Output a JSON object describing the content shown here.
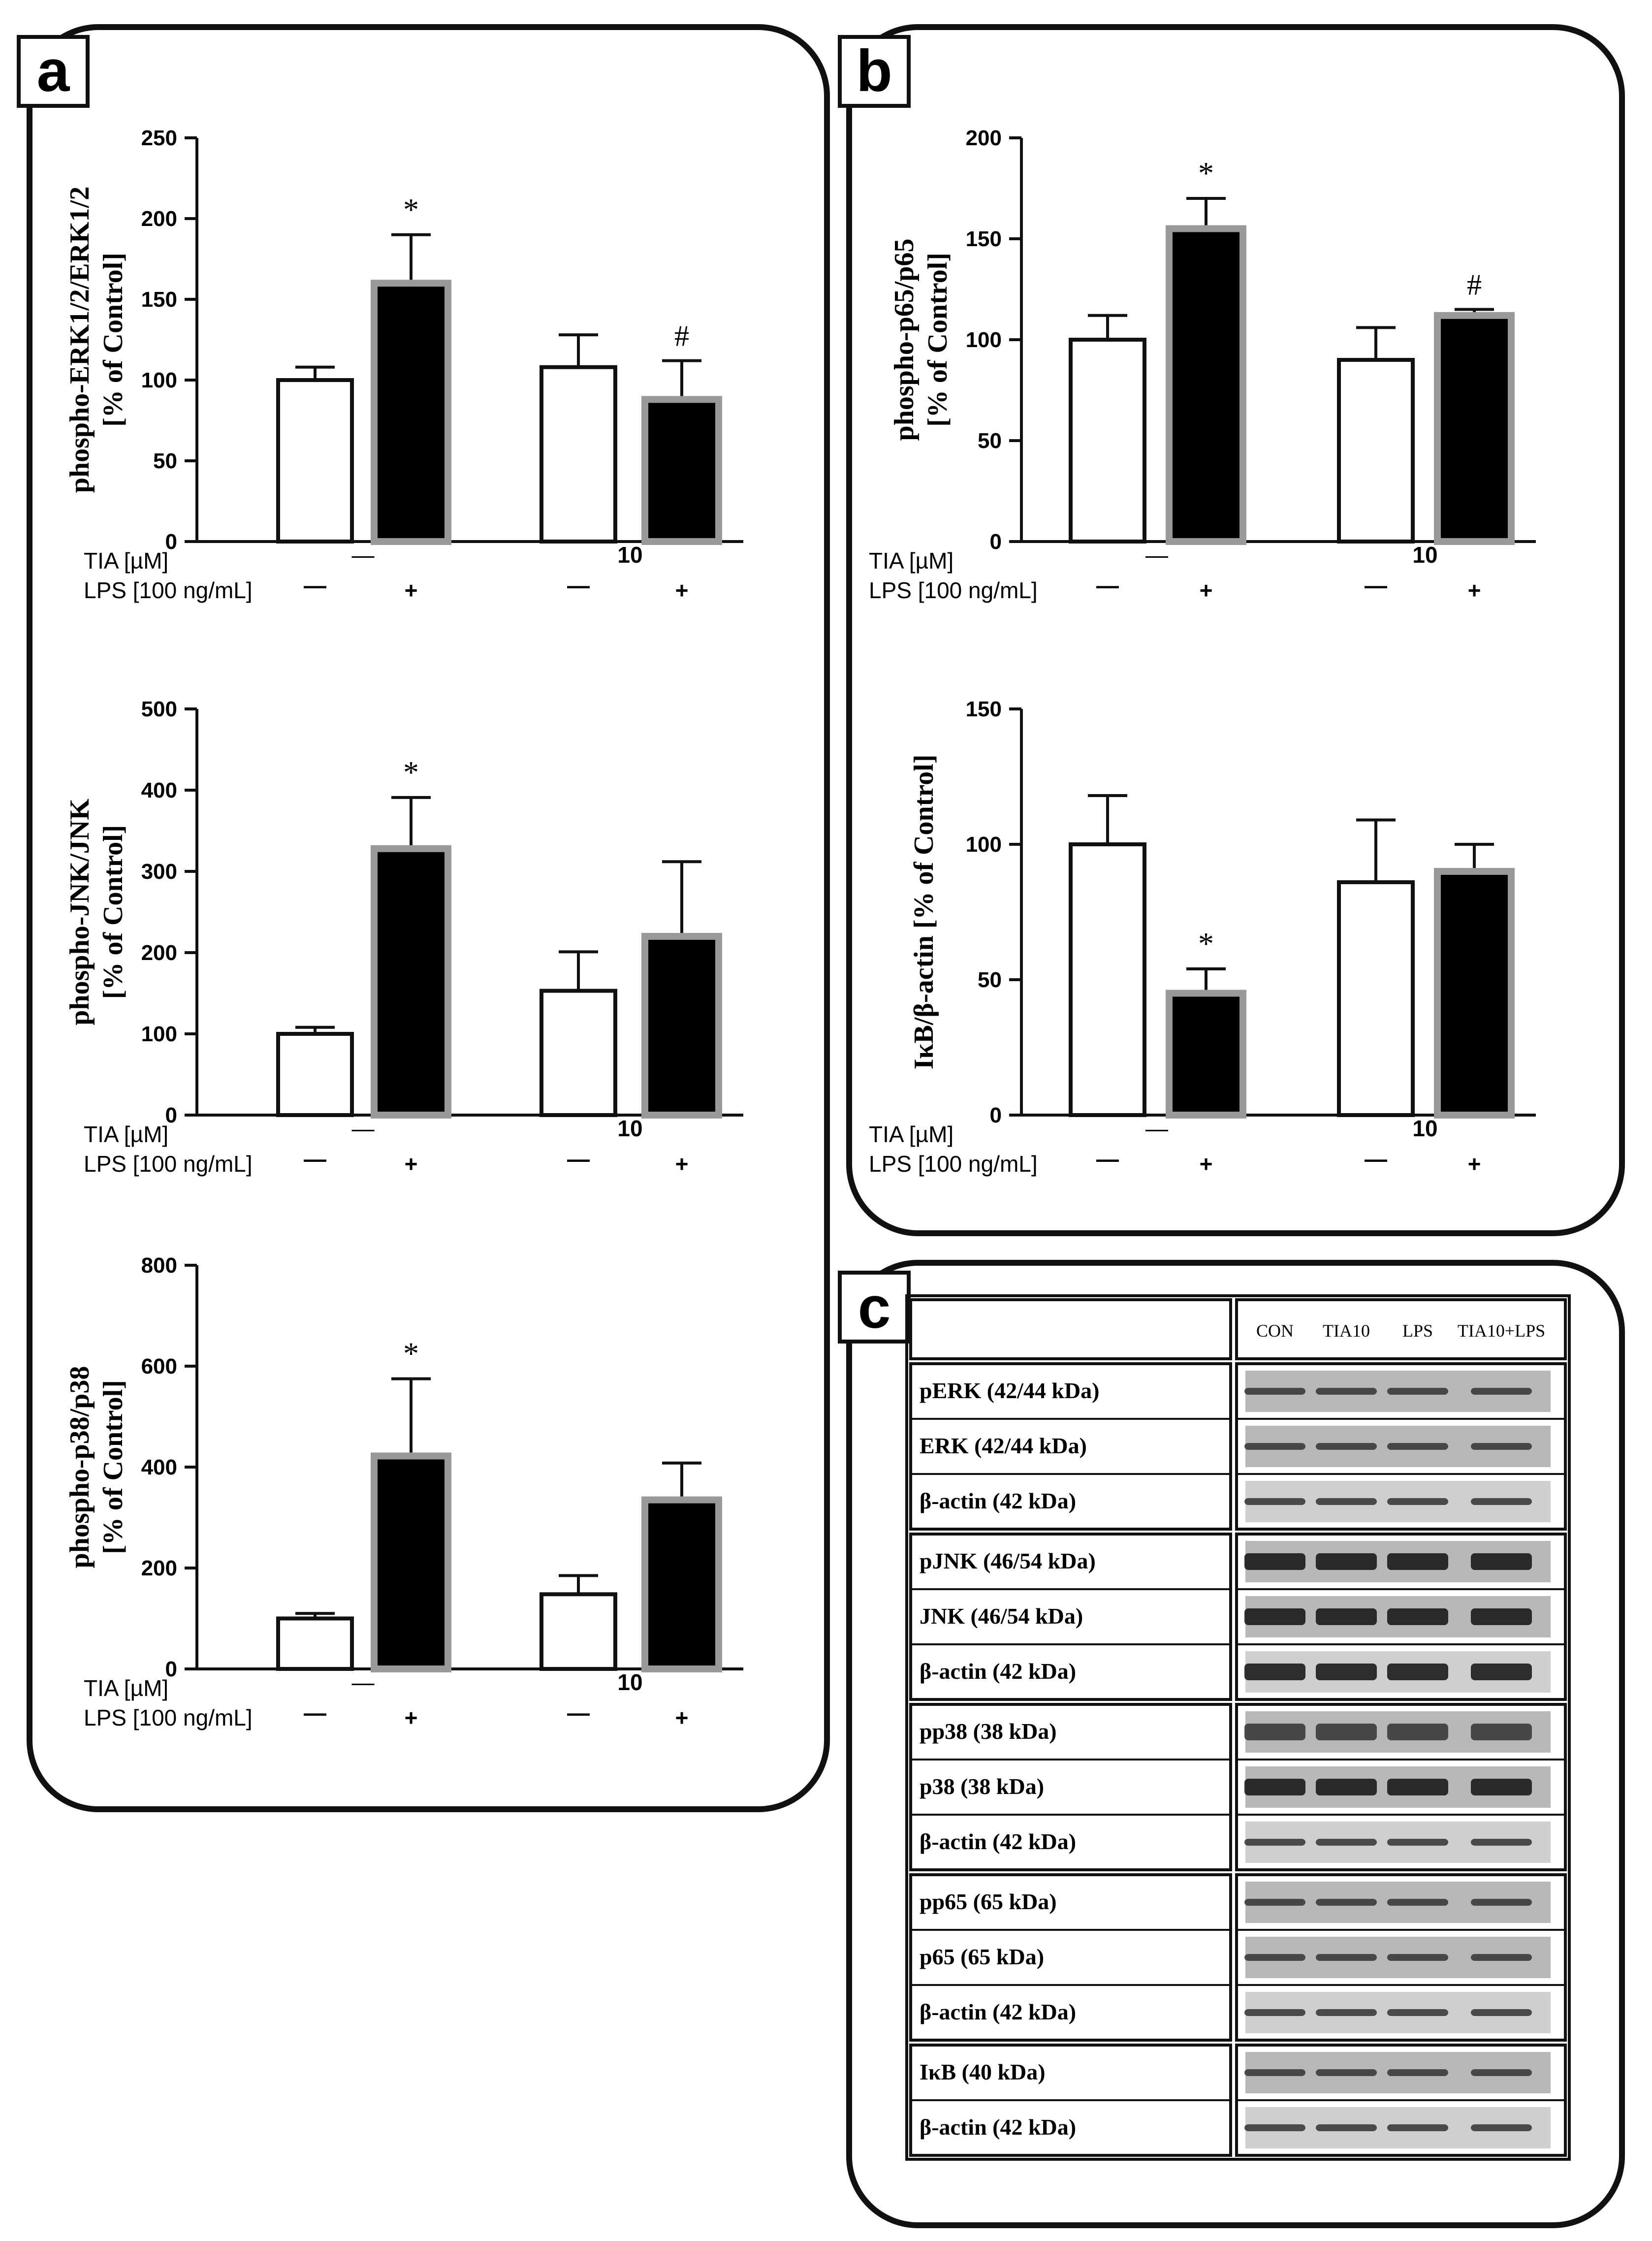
{
  "panels": {
    "a": "a",
    "b": "b",
    "c": "c"
  },
  "chart_data": [
    {
      "id": "erk",
      "type": "bar",
      "ylabel_line1": "phospho-ERK1/2/ERK1/2",
      "ylabel_line2": "[% of Control]",
      "ylim": [
        0,
        250
      ],
      "ticks": [
        0,
        50,
        100,
        150,
        200,
        250
      ],
      "values": [
        100,
        160,
        108,
        88
      ],
      "errors": [
        8,
        30,
        20,
        24
      ],
      "marks": [
        "",
        "*",
        "",
        "#"
      ],
      "tia_label": "TIA [µM]",
      "lps_label": "LPS [100 ng/mL]",
      "tia_groups": [
        "—",
        "10"
      ],
      "lps_values": [
        "—",
        "+",
        "—",
        "+"
      ]
    },
    {
      "id": "jnk",
      "type": "bar",
      "ylabel_line1": "phospho-JNK/JNK",
      "ylabel_line2": "[% of Control]",
      "ylim": [
        0,
        500
      ],
      "ticks": [
        0,
        100,
        200,
        300,
        400,
        500
      ],
      "values": [
        100,
        328,
        153,
        220
      ],
      "errors": [
        8,
        63,
        48,
        92
      ],
      "marks": [
        "",
        "*",
        "",
        ""
      ],
      "tia_label": "TIA [µM]",
      "lps_label": "LPS [100 ng/mL]",
      "tia_groups": [
        "—",
        "10"
      ],
      "lps_values": [
        "—",
        "+",
        "—",
        "+"
      ]
    },
    {
      "id": "p38",
      "type": "bar",
      "ylabel_line1": "phospho-p38/p38",
      "ylabel_line2": "[% of Control]",
      "ylim": [
        0,
        800
      ],
      "ticks": [
        0,
        200,
        400,
        600,
        800
      ],
      "values": [
        100,
        422,
        148,
        335
      ],
      "errors": [
        10,
        153,
        37,
        73
      ],
      "marks": [
        "",
        "*",
        "",
        ""
      ],
      "tia_label": "TIA [µM]",
      "lps_label": "LPS [100 ng/mL]",
      "tia_groups": [
        "—",
        "10"
      ],
      "lps_values": [
        "—",
        "+",
        "—",
        "+"
      ]
    },
    {
      "id": "p65",
      "type": "bar",
      "ylabel_line1": "phospho-p65/p65",
      "ylabel_line2": "[% of Control]",
      "ylim": [
        0,
        200
      ],
      "ticks": [
        0,
        50,
        100,
        150,
        200
      ],
      "values": [
        100,
        155,
        90,
        112
      ],
      "errors": [
        12,
        15,
        16,
        3
      ],
      "marks": [
        "",
        "*",
        "",
        "#"
      ],
      "tia_label": "TIA [µM]",
      "lps_label": "LPS [100 ng/mL]",
      "tia_groups": [
        "—",
        "10"
      ],
      "lps_values": [
        "—",
        "+",
        "—",
        "+"
      ]
    },
    {
      "id": "ikb",
      "type": "bar",
      "ylabel_line1": "IκB/β-actin [% of Control]",
      "ylabel_line2": "",
      "ylim": [
        0,
        150
      ],
      "ticks": [
        0,
        50,
        100,
        150
      ],
      "values": [
        100,
        45,
        86,
        90
      ],
      "errors": [
        18,
        9,
        23,
        10
      ],
      "marks": [
        "",
        "*",
        "",
        ""
      ],
      "tia_label": "TIA [µM]",
      "lps_label": "LPS [100 ng/mL]",
      "tia_groups": [
        "—",
        "10"
      ],
      "lps_values": [
        "—",
        "+",
        "—",
        "+"
      ]
    }
  ],
  "blots": {
    "header": [
      "CON",
      "TIA10",
      "LPS",
      "TIA10+LPS"
    ],
    "groups": [
      [
        "pERK (42/44 kDa)",
        "ERK (42/44 kDa)",
        "β-actin (42 kDa)"
      ],
      [
        "pJNK (46/54 kDa)",
        "JNK (46/54 kDa)",
        "β-actin (42 kDa)"
      ],
      [
        "pp38 (38 kDa)",
        "p38 (38 kDa)",
        "β-actin (42 kDa)"
      ],
      [
        "pp65 (65 kDa)",
        "p65 (65 kDa)",
        "β-actin (42 kDa)"
      ],
      [
        "IκB (40 kDa)",
        "β-actin (42 kDa)"
      ]
    ]
  }
}
